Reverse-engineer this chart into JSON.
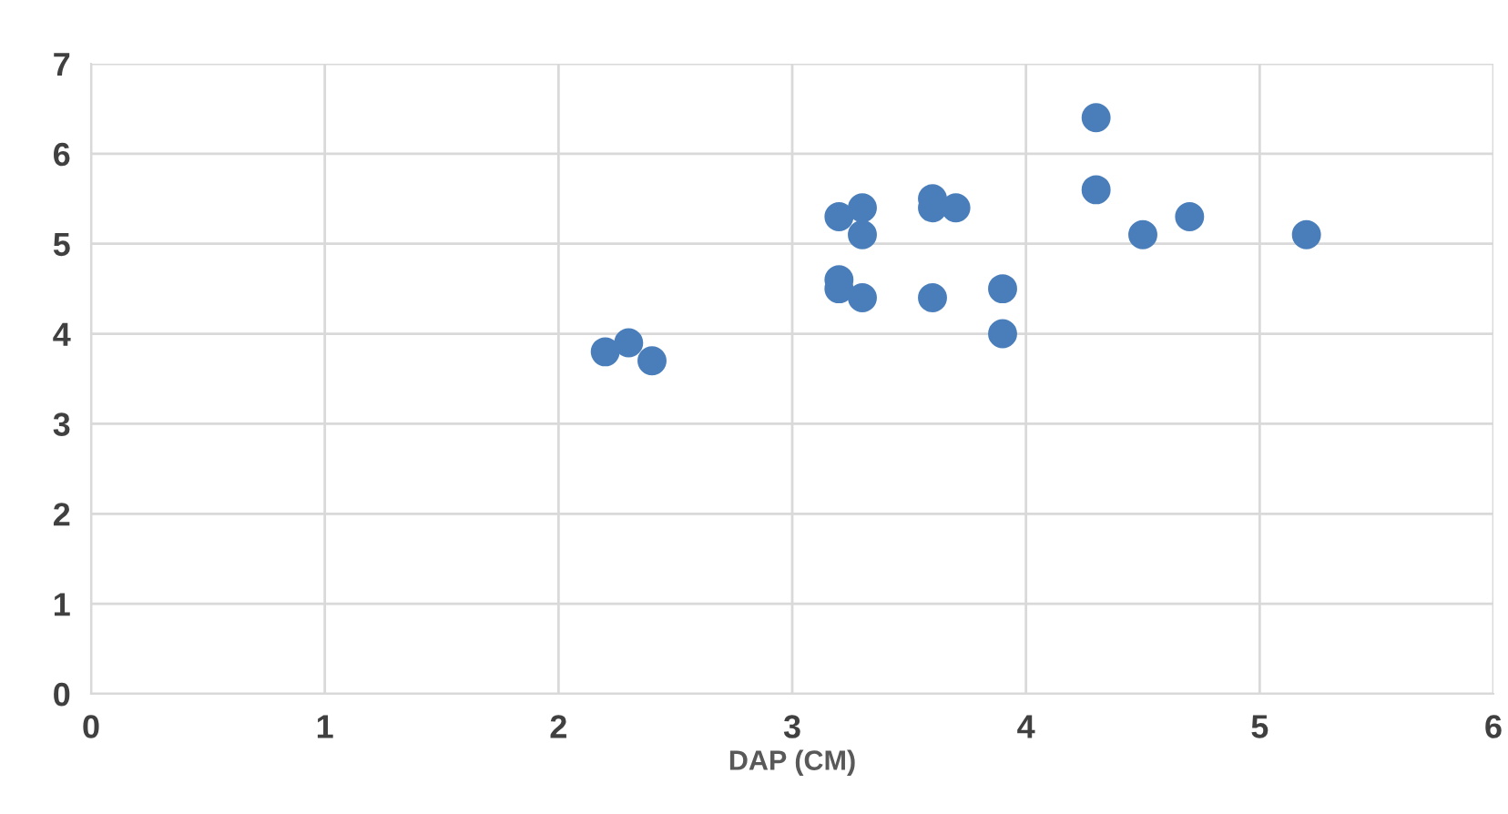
{
  "chart_data": {
    "type": "scatter",
    "xlabel": "DAP (CM)",
    "x": [
      2.2,
      2.3,
      2.4,
      3.2,
      3.2,
      3.2,
      3.3,
      3.3,
      3.3,
      3.6,
      3.6,
      3.6,
      3.7,
      3.9,
      3.9,
      4.3,
      4.3,
      4.5,
      4.7,
      5.2
    ],
    "values": [
      3.8,
      3.9,
      3.7,
      5.3,
      4.6,
      4.5,
      5.4,
      5.1,
      4.4,
      5.5,
      5.4,
      4.4,
      5.4,
      4.5,
      4.0,
      6.4,
      5.6,
      5.1,
      5.3,
      5.1
    ],
    "color": "#4a7ebb",
    "marker": "circle",
    "grid": true,
    "xlim": [
      0,
      6
    ],
    "xticks": [
      0,
      1,
      2,
      3,
      4,
      5,
      6
    ],
    "ylim": [
      0,
      7
    ],
    "yticks": [
      0,
      1,
      2,
      3,
      4,
      5,
      6,
      7
    ]
  }
}
